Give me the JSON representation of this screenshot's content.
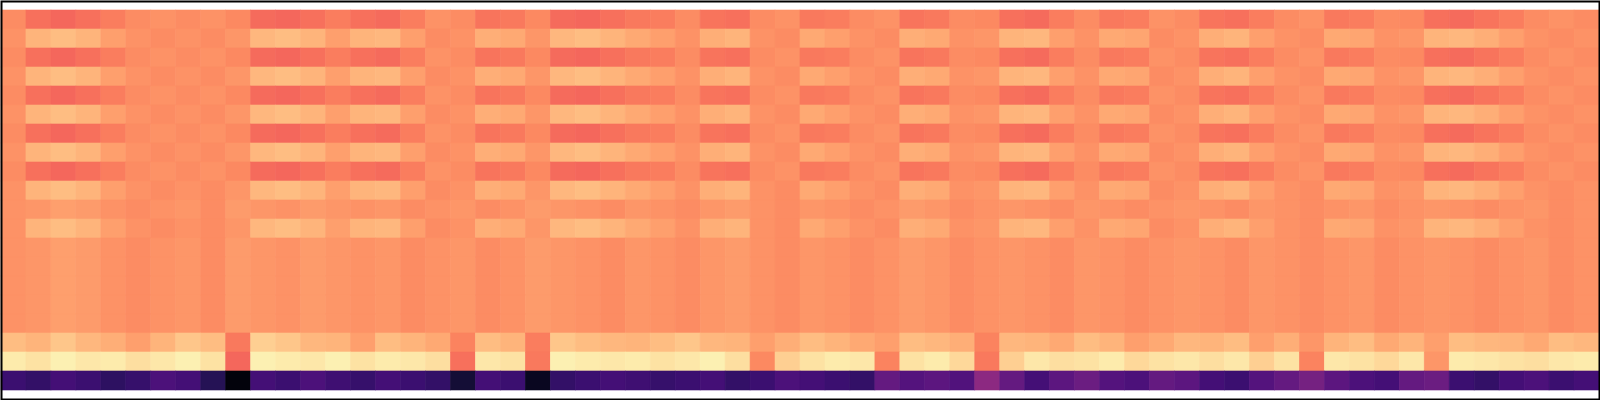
{
  "chart_data": {
    "type": "heatmap",
    "tick_labels": false,
    "zlim": [
      0,
      100
    ],
    "cells": [
      [
        76,
        70,
        68,
        70,
        73,
        76,
        77,
        76,
        77,
        75,
        69,
        68,
        70,
        73,
        70,
        69,
        73,
        77,
        76,
        71,
        72,
        75,
        69,
        68,
        70,
        72,
        73,
        76,
        71,
        70,
        76,
        77,
        72,
        73,
        76,
        77,
        71,
        72,
        76,
        75,
        70,
        69,
        73,
        76,
        72,
        73,
        77,
        76,
        71,
        70,
        73,
        76,
        77,
        72,
        73,
        76,
        75,
        70,
        69,
        71,
        73,
        76,
        77,
        76
      ],
      [
        77,
        84,
        86,
        84,
        80,
        77,
        76,
        77,
        76,
        78,
        85,
        86,
        84,
        80,
        84,
        85,
        80,
        76,
        77,
        83,
        82,
        78,
        85,
        86,
        84,
        82,
        80,
        77,
        83,
        84,
        77,
        76,
        82,
        80,
        77,
        76,
        83,
        82,
        77,
        78,
        84,
        85,
        80,
        77,
        82,
        81,
        76,
        77,
        83,
        84,
        80,
        77,
        76,
        82,
        81,
        77,
        78,
        84,
        85,
        83,
        80,
        77,
        76,
        77
      ],
      [
        76,
        70,
        68,
        70,
        73,
        76,
        77,
        76,
        77,
        75,
        69,
        68,
        70,
        73,
        70,
        69,
        73,
        77,
        76,
        71,
        72,
        75,
        69,
        68,
        70,
        72,
        73,
        76,
        71,
        70,
        76,
        77,
        72,
        73,
        76,
        77,
        71,
        72,
        76,
        75,
        70,
        69,
        73,
        76,
        72,
        73,
        77,
        76,
        71,
        70,
        73,
        76,
        77,
        72,
        73,
        76,
        75,
        70,
        69,
        71,
        73,
        76,
        77,
        76
      ],
      [
        77,
        84,
        86,
        84,
        80,
        77,
        76,
        77,
        76,
        78,
        85,
        86,
        84,
        80,
        84,
        85,
        80,
        76,
        77,
        83,
        82,
        78,
        85,
        86,
        84,
        82,
        80,
        77,
        83,
        84,
        77,
        76,
        82,
        80,
        77,
        76,
        83,
        82,
        77,
        78,
        84,
        85,
        80,
        77,
        82,
        81,
        76,
        77,
        83,
        84,
        80,
        77,
        76,
        82,
        81,
        77,
        78,
        84,
        85,
        83,
        80,
        77,
        76,
        77
      ],
      [
        76,
        70,
        68,
        70,
        73,
        76,
        77,
        76,
        77,
        75,
        69,
        68,
        70,
        73,
        70,
        69,
        73,
        77,
        76,
        71,
        72,
        75,
        69,
        68,
        70,
        72,
        73,
        76,
        71,
        70,
        76,
        77,
        72,
        73,
        76,
        77,
        71,
        72,
        76,
        75,
        70,
        69,
        73,
        76,
        72,
        73,
        77,
        76,
        71,
        70,
        73,
        76,
        77,
        72,
        73,
        76,
        75,
        70,
        69,
        71,
        73,
        76,
        77,
        76
      ],
      [
        77,
        84,
        86,
        84,
        80,
        77,
        76,
        77,
        76,
        78,
        85,
        86,
        84,
        80,
        84,
        85,
        80,
        76,
        77,
        83,
        82,
        78,
        85,
        86,
        84,
        82,
        80,
        77,
        83,
        84,
        77,
        76,
        82,
        80,
        77,
        76,
        83,
        82,
        77,
        78,
        84,
        85,
        80,
        77,
        82,
        81,
        76,
        77,
        83,
        84,
        80,
        77,
        76,
        82,
        81,
        77,
        78,
        84,
        85,
        83,
        80,
        77,
        76,
        77
      ],
      [
        76,
        70,
        68,
        70,
        73,
        76,
        77,
        76,
        77,
        75,
        69,
        68,
        70,
        73,
        70,
        69,
        73,
        77,
        76,
        71,
        72,
        75,
        69,
        68,
        70,
        72,
        73,
        76,
        71,
        70,
        76,
        77,
        72,
        73,
        76,
        77,
        71,
        72,
        76,
        75,
        70,
        69,
        73,
        76,
        72,
        73,
        77,
        76,
        71,
        70,
        73,
        76,
        77,
        72,
        73,
        76,
        75,
        70,
        69,
        71,
        73,
        76,
        77,
        76
      ],
      [
        77,
        84,
        86,
        84,
        80,
        77,
        76,
        77,
        76,
        78,
        85,
        86,
        84,
        80,
        84,
        85,
        80,
        76,
        77,
        83,
        82,
        78,
        85,
        86,
        84,
        82,
        80,
        77,
        83,
        84,
        77,
        76,
        82,
        80,
        77,
        76,
        83,
        82,
        77,
        78,
        84,
        85,
        80,
        77,
        82,
        81,
        76,
        77,
        83,
        84,
        80,
        77,
        76,
        82,
        81,
        77,
        78,
        84,
        85,
        83,
        80,
        77,
        76,
        77
      ],
      [
        76,
        70,
        68,
        70,
        73,
        76,
        77,
        76,
        77,
        75,
        69,
        68,
        70,
        73,
        70,
        69,
        73,
        77,
        76,
        71,
        72,
        75,
        69,
        68,
        70,
        72,
        73,
        76,
        71,
        70,
        76,
        77,
        72,
        73,
        76,
        77,
        71,
        72,
        76,
        75,
        70,
        69,
        73,
        76,
        72,
        73,
        77,
        76,
        71,
        70,
        73,
        76,
        77,
        72,
        73,
        76,
        75,
        70,
        69,
        71,
        73,
        76,
        77,
        76
      ],
      [
        77,
        84,
        86,
        84,
        80,
        77,
        76,
        77,
        76,
        78,
        85,
        86,
        84,
        80,
        84,
        85,
        80,
        76,
        77,
        83,
        82,
        78,
        85,
        86,
        84,
        82,
        80,
        77,
        83,
        84,
        77,
        76,
        82,
        80,
        77,
        76,
        83,
        82,
        77,
        78,
        84,
        85,
        80,
        77,
        82,
        81,
        76,
        77,
        83,
        84,
        80,
        77,
        76,
        82,
        81,
        77,
        78,
        84,
        85,
        83,
        80,
        77,
        76,
        77
      ],
      [
        77,
        78,
        80,
        79,
        77,
        76,
        77,
        78,
        76,
        79,
        78,
        77,
        79,
        78,
        77,
        78,
        76,
        77,
        78,
        76,
        77,
        79,
        78,
        77,
        76,
        78,
        77,
        76,
        78,
        79,
        77,
        76,
        78,
        77,
        76,
        77,
        79,
        78,
        76,
        77,
        78,
        77,
        76,
        78,
        77,
        76,
        77,
        78,
        77,
        76,
        78,
        77,
        76,
        77,
        78,
        76,
        77,
        78,
        77,
        76,
        77,
        78,
        76,
        77
      ],
      [
        77,
        84,
        86,
        84,
        80,
        77,
        76,
        77,
        76,
        78,
        85,
        86,
        84,
        80,
        84,
        85,
        80,
        76,
        77,
        83,
        82,
        78,
        85,
        86,
        84,
        82,
        80,
        77,
        83,
        84,
        77,
        76,
        82,
        80,
        77,
        76,
        83,
        82,
        77,
        78,
        84,
        85,
        80,
        77,
        82,
        81,
        76,
        77,
        83,
        84,
        80,
        77,
        76,
        82,
        81,
        77,
        78,
        84,
        85,
        83,
        80,
        77,
        76,
        77
      ],
      [
        77,
        78,
        80,
        79,
        77,
        76,
        77,
        78,
        76,
        79,
        78,
        77,
        79,
        78,
        77,
        78,
        76,
        77,
        78,
        76,
        77,
        79,
        78,
        77,
        76,
        78,
        77,
        76,
        78,
        79,
        77,
        76,
        78,
        77,
        76,
        77,
        79,
        78,
        76,
        77,
        78,
        77,
        76,
        78,
        77,
        76,
        77,
        78,
        77,
        76,
        78,
        77,
        76,
        77,
        78,
        76,
        77,
        78,
        77,
        76,
        77,
        78,
        76,
        77
      ],
      [
        77,
        78,
        80,
        79,
        77,
        76,
        77,
        78,
        76,
        79,
        78,
        77,
        79,
        78,
        77,
        78,
        76,
        77,
        78,
        76,
        77,
        79,
        78,
        77,
        76,
        78,
        77,
        76,
        78,
        79,
        77,
        76,
        78,
        77,
        76,
        77,
        79,
        78,
        76,
        77,
        78,
        77,
        76,
        78,
        77,
        76,
        77,
        78,
        77,
        76,
        78,
        77,
        76,
        77,
        78,
        76,
        77,
        78,
        77,
        76,
        77,
        78,
        76,
        77
      ],
      [
        77,
        78,
        80,
        79,
        77,
        76,
        77,
        78,
        76,
        79,
        78,
        77,
        79,
        78,
        77,
        78,
        76,
        77,
        78,
        76,
        77,
        79,
        78,
        77,
        76,
        78,
        77,
        76,
        78,
        79,
        77,
        76,
        78,
        77,
        76,
        77,
        79,
        78,
        76,
        77,
        78,
        77,
        76,
        78,
        77,
        76,
        77,
        78,
        77,
        76,
        78,
        77,
        76,
        77,
        78,
        76,
        77,
        78,
        77,
        76,
        77,
        78,
        76,
        77
      ],
      [
        77,
        78,
        80,
        79,
        77,
        76,
        77,
        78,
        76,
        79,
        78,
        77,
        79,
        78,
        77,
        78,
        76,
        77,
        78,
        76,
        77,
        79,
        78,
        77,
        76,
        78,
        77,
        76,
        78,
        79,
        77,
        76,
        78,
        77,
        76,
        77,
        79,
        78,
        76,
        77,
        78,
        77,
        76,
        78,
        77,
        76,
        77,
        78,
        77,
        76,
        78,
        77,
        76,
        77,
        78,
        76,
        77,
        78,
        77,
        76,
        77,
        78,
        76,
        77
      ],
      [
        77,
        78,
        80,
        79,
        77,
        76,
        77,
        78,
        76,
        79,
        78,
        77,
        79,
        78,
        77,
        78,
        76,
        77,
        78,
        76,
        77,
        79,
        78,
        77,
        76,
        78,
        77,
        76,
        78,
        79,
        77,
        76,
        78,
        77,
        76,
        77,
        79,
        78,
        76,
        77,
        78,
        77,
        76,
        78,
        77,
        76,
        77,
        78,
        77,
        76,
        78,
        77,
        76,
        77,
        78,
        76,
        77,
        78,
        77,
        76,
        77,
        78,
        76,
        77
      ],
      [
        86,
        84,
        88,
        85,
        83,
        80,
        84,
        88,
        86,
        72,
        90,
        88,
        85,
        84,
        80,
        86,
        84,
        82,
        74,
        86,
        84,
        73,
        88,
        86,
        85,
        84,
        86,
        88,
        85,
        84,
        80,
        83,
        86,
        84,
        82,
        80,
        86,
        85,
        83,
        74,
        85,
        84,
        82,
        86,
        84,
        80,
        82,
        85,
        84,
        86,
        80,
        83,
        78,
        84,
        86,
        82,
        84,
        80,
        86,
        85,
        84,
        82,
        86,
        85
      ],
      [
        96,
        94,
        97,
        95,
        96,
        93,
        95,
        97,
        94,
        68,
        97,
        96,
        95,
        97,
        94,
        96,
        95,
        93,
        70,
        95,
        94,
        72,
        97,
        96,
        95,
        96,
        94,
        95,
        97,
        93,
        75,
        90,
        94,
        96,
        95,
        74,
        94,
        96,
        92,
        72,
        90,
        95,
        93,
        94,
        96,
        92,
        94,
        95,
        93,
        95,
        90,
        94,
        74,
        95,
        94,
        92,
        95,
        78,
        96,
        95,
        94,
        93,
        95,
        96
      ],
      [
        20,
        18,
        22,
        20,
        17,
        19,
        24,
        22,
        15,
        2,
        22,
        20,
        24,
        21,
        19,
        22,
        20,
        18,
        10,
        22,
        20,
        6,
        18,
        20,
        22,
        21,
        19,
        20,
        22,
        18,
        20,
        24,
        22,
        20,
        18,
        30,
        26,
        28,
        25,
        40,
        30,
        22,
        28,
        32,
        26,
        24,
        30,
        28,
        22,
        20,
        26,
        30,
        34,
        28,
        24,
        22,
        30,
        32,
        20,
        18,
        22,
        24,
        20,
        22
      ]
    ]
  }
}
